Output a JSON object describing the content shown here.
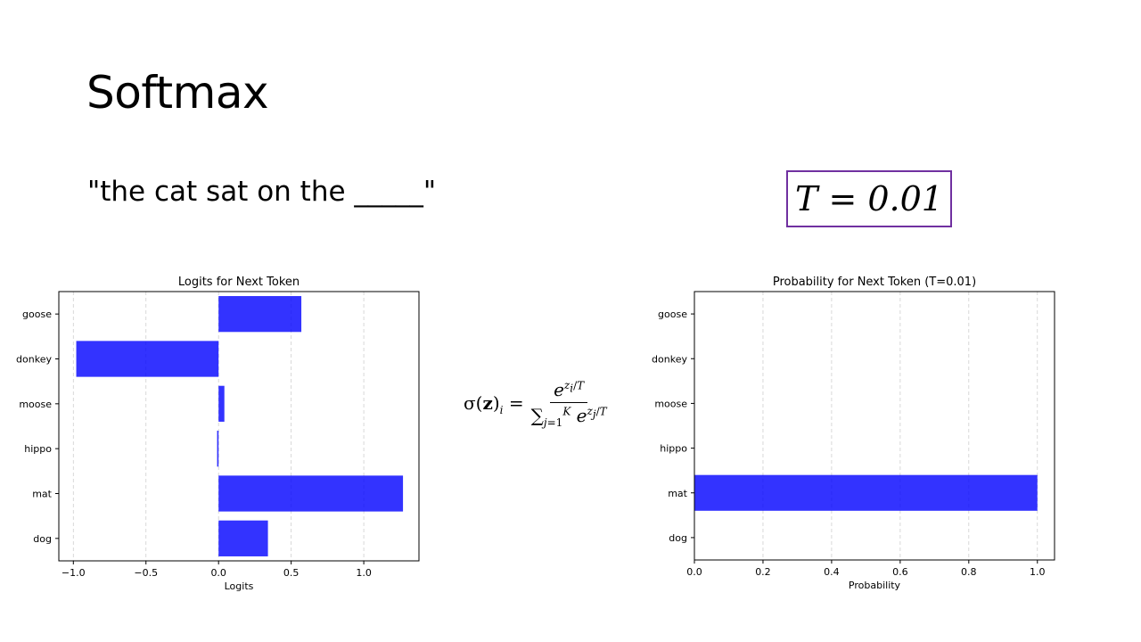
{
  "slide": {
    "title": "Softmax",
    "prompt": "\"the cat sat on the _____\"",
    "temperature_label": "T = 0.01"
  },
  "formula": {
    "lhs": "σ(z)ᵢ =",
    "numerator": "e^{z_i/T}",
    "denominator": "∑_{j=1}^{K} e^{z_j/T}"
  },
  "chart_data": [
    {
      "type": "bar",
      "orientation": "horizontal",
      "title": "Logits for Next Token",
      "xlabel": "Logits",
      "ylabel": "",
      "categories": [
        "dog",
        "mat",
        "hippo",
        "moose",
        "donkey",
        "goose"
      ],
      "values": [
        0.34,
        1.27,
        -0.01,
        0.04,
        -0.98,
        0.57
      ],
      "xlim": [
        -1.1,
        1.38
      ],
      "xticks": [
        -1.0,
        -0.5,
        0.0,
        0.5,
        1.0
      ],
      "xtick_labels": [
        "−1.0",
        "−0.5",
        "0.0",
        "0.5",
        "1.0"
      ],
      "grid": "x dashed",
      "bar_color": "#0000ff"
    },
    {
      "type": "bar",
      "orientation": "horizontal",
      "title": "Probability for Next Token (T=0.01)",
      "xlabel": "Probability",
      "ylabel": "",
      "categories": [
        "dog",
        "mat",
        "hippo",
        "moose",
        "donkey",
        "goose"
      ],
      "values": [
        0.0,
        1.0,
        0.0,
        0.0,
        0.0,
        0.0
      ],
      "xlim": [
        0.0,
        1.05
      ],
      "xticks": [
        0.0,
        0.2,
        0.4,
        0.6,
        0.8,
        1.0
      ],
      "xtick_labels": [
        "0.0",
        "0.2",
        "0.4",
        "0.6",
        "0.8",
        "1.0"
      ],
      "grid": "x dashed",
      "bar_color": "#0000ff"
    }
  ]
}
